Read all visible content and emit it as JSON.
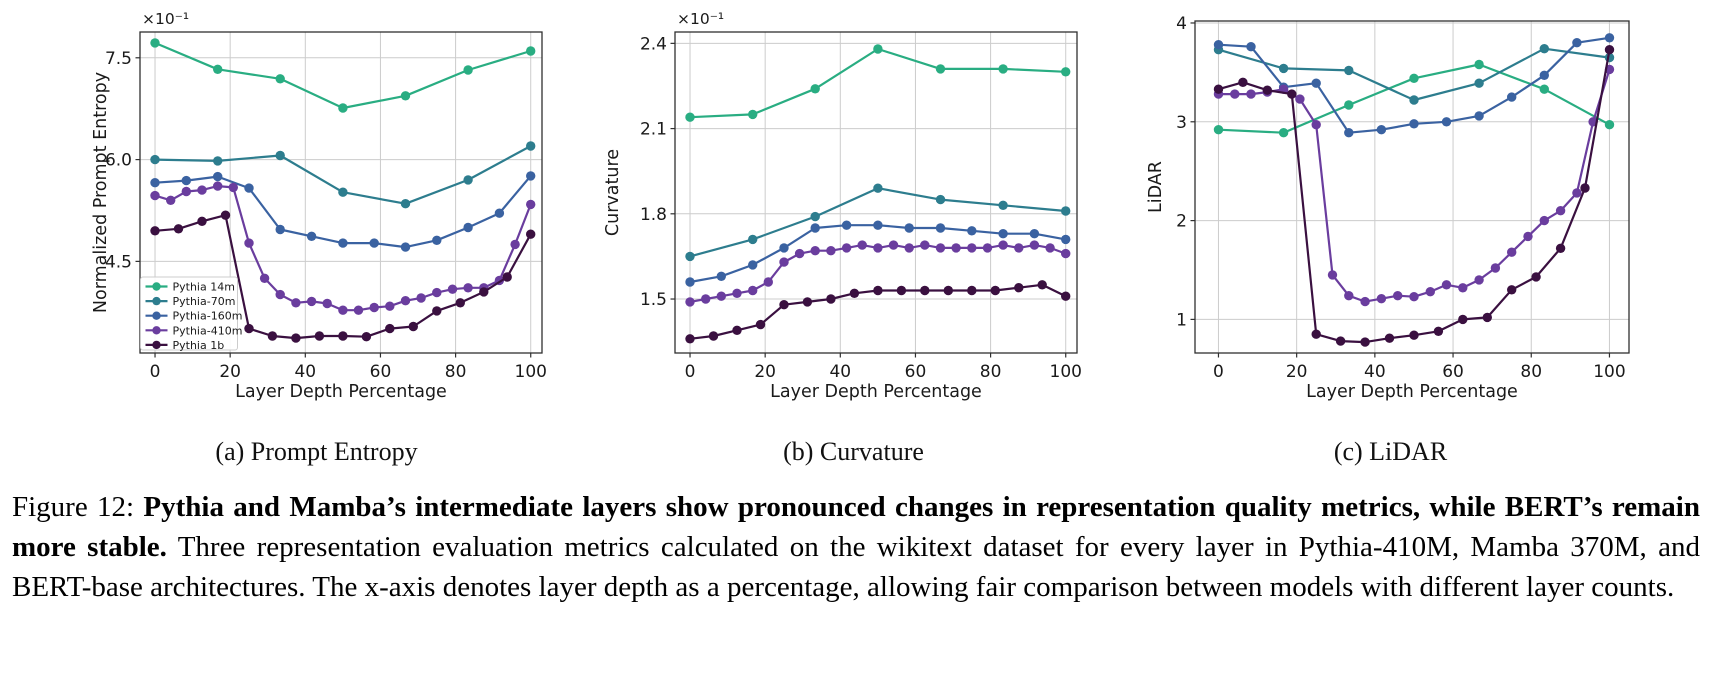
{
  "figure": {
    "subcaptions": [
      "(a) Prompt Entropy",
      "(b) Curvature",
      "(c) LiDAR"
    ],
    "caption": {
      "prefix": "Figure 12: ",
      "bold": "Pythia and Mamba’s intermediate layers show pronounced changes in representation quality metrics, while BERT’s remain more stable.",
      "rest": " Three representation evaluation metrics calculated on the wikitext dataset for every layer in Pythia-410M, Mamba 370M, and BERT-base architectures. The x-axis denotes layer depth as a percentage, allowing fair comparison between models with different layer counts."
    }
  },
  "style": {
    "grid_color": "#cccccc",
    "spine_color": "#2f2f2f",
    "legend_border": "#cccccc"
  },
  "models": [
    {
      "name": "Pythia 14m",
      "color": "#29ad82",
      "x": [
        0,
        16.67,
        33.33,
        50,
        66.67,
        83.33,
        100
      ]
    },
    {
      "name": "Pythia-70m",
      "color": "#2d7d8e",
      "x": [
        0,
        16.67,
        33.33,
        50,
        66.67,
        83.33,
        100
      ]
    },
    {
      "name": "Pythia-160m",
      "color": "#3a62a1",
      "x": [
        0,
        8.33,
        16.67,
        25,
        33.33,
        41.67,
        50,
        58.33,
        66.67,
        75,
        83.33,
        91.67,
        100
      ]
    },
    {
      "name": "Pythia-410m",
      "color": "#6a3d9e",
      "x": [
        0,
        4.17,
        8.33,
        12.5,
        16.67,
        20.83,
        25,
        29.17,
        33.33,
        37.5,
        41.67,
        45.83,
        50,
        54.17,
        58.33,
        62.5,
        66.67,
        70.83,
        75,
        79.17,
        83.33,
        87.5,
        91.67,
        95.83,
        100
      ]
    },
    {
      "name": "Pythia 1b",
      "color": "#3a1040",
      "x": [
        0,
        6.25,
        12.5,
        18.75,
        25,
        31.25,
        37.5,
        43.75,
        50,
        56.25,
        62.5,
        68.75,
        75,
        81.25,
        87.5,
        93.75,
        100
      ]
    }
  ],
  "chart_data": [
    {
      "type": "line",
      "panel": "a",
      "title": "(a) Prompt Entropy",
      "xlabel": "Layer Depth Percentage",
      "ylabel": "Normalized Prompt Entropy",
      "offset_text": "×10⁻¹",
      "grid": true,
      "legend": true,
      "legend_position": "lower left",
      "xlim": [
        -4,
        103
      ],
      "ylim": [
        3.15,
        7.88
      ],
      "xtick_vals": [
        0,
        20,
        40,
        60,
        80,
        100
      ],
      "xtick_labels": [
        "0",
        "20",
        "40",
        "60",
        "80",
        "100"
      ],
      "ytick_vals": [
        4.5,
        6.0,
        7.5
      ],
      "ytick_labels": [
        "4.5",
        "6.0",
        "7.5"
      ],
      "series": [
        {
          "model": "Pythia 14m",
          "y": [
            7.72,
            7.33,
            7.19,
            6.76,
            6.94,
            7.32,
            7.6
          ]
        },
        {
          "model": "Pythia-70m",
          "y": [
            6.0,
            5.98,
            6.06,
            5.52,
            5.35,
            5.7,
            6.2
          ]
        },
        {
          "model": "Pythia-160m",
          "y": [
            5.66,
            5.69,
            5.75,
            5.58,
            4.97,
            4.87,
            4.77,
            4.77,
            4.71,
            4.81,
            5.0,
            5.21,
            5.76
          ]
        },
        {
          "model": "Pythia-410m",
          "y": [
            5.47,
            5.4,
            5.53,
            5.55,
            5.61,
            5.59,
            4.77,
            4.25,
            4.01,
            3.89,
            3.91,
            3.88,
            3.78,
            3.78,
            3.82,
            3.84,
            3.92,
            3.96,
            4.04,
            4.09,
            4.11,
            4.11,
            4.22,
            4.75,
            5.34
          ]
        },
        {
          "model": "Pythia 1b",
          "y": [
            4.95,
            4.98,
            5.09,
            5.18,
            3.51,
            3.4,
            3.37,
            3.4,
            3.4,
            3.39,
            3.51,
            3.54,
            3.77,
            3.89,
            4.05,
            4.27,
            4.9
          ]
        }
      ]
    },
    {
      "type": "line",
      "panel": "b",
      "title": "(b) Curvature",
      "xlabel": "Layer Depth Percentage",
      "ylabel": "Curvature",
      "offset_text": "×10⁻¹",
      "grid": true,
      "legend": false,
      "xlim": [
        -4,
        103
      ],
      "ylim": [
        1.31,
        2.44
      ],
      "xtick_vals": [
        0,
        20,
        40,
        60,
        80,
        100
      ],
      "xtick_labels": [
        "0",
        "20",
        "40",
        "60",
        "80",
        "100"
      ],
      "ytick_vals": [
        1.5,
        1.8,
        2.1,
        2.4
      ],
      "ytick_labels": [
        "1.5",
        "1.8",
        "2.1",
        "2.4"
      ],
      "series": [
        {
          "model": "Pythia 14m",
          "y": [
            2.14,
            2.15,
            2.24,
            2.38,
            2.31,
            2.31,
            2.3
          ]
        },
        {
          "model": "Pythia-70m",
          "y": [
            1.65,
            1.71,
            1.79,
            1.89,
            1.85,
            1.83,
            1.81
          ]
        },
        {
          "model": "Pythia-160m",
          "y": [
            1.56,
            1.58,
            1.62,
            1.68,
            1.75,
            1.76,
            1.76,
            1.75,
            1.75,
            1.74,
            1.73,
            1.73,
            1.71
          ]
        },
        {
          "model": "Pythia-410m",
          "y": [
            1.49,
            1.5,
            1.51,
            1.52,
            1.53,
            1.56,
            1.63,
            1.66,
            1.67,
            1.67,
            1.68,
            1.69,
            1.68,
            1.69,
            1.68,
            1.69,
            1.68,
            1.68,
            1.68,
            1.68,
            1.69,
            1.68,
            1.69,
            1.68,
            1.66
          ]
        },
        {
          "model": "Pythia 1b",
          "y": [
            1.36,
            1.37,
            1.39,
            1.41,
            1.48,
            1.49,
            1.5,
            1.52,
            1.53,
            1.53,
            1.53,
            1.53,
            1.53,
            1.53,
            1.54,
            1.55,
            1.51
          ]
        }
      ]
    },
    {
      "type": "line",
      "panel": "c",
      "title": "(c) LiDAR",
      "xlabel": "Layer Depth Percentage",
      "ylabel": "LiDAR",
      "offset_text": "",
      "grid": true,
      "legend": false,
      "xlim": [
        -6,
        105
      ],
      "ylim": [
        0.66,
        4.02
      ],
      "xtick_vals": [
        0,
        20,
        40,
        60,
        80,
        100
      ],
      "xtick_labels": [
        "0",
        "20",
        "40",
        "60",
        "80",
        "100"
      ],
      "ytick_vals": [
        1,
        2,
        3,
        4
      ],
      "ytick_labels": [
        "1",
        "2",
        "3",
        "4"
      ],
      "series": [
        {
          "model": "Pythia 14m",
          "y": [
            2.92,
            2.89,
            3.17,
            3.44,
            3.58,
            3.33,
            2.97
          ]
        },
        {
          "model": "Pythia-70m",
          "y": [
            3.73,
            3.54,
            3.52,
            3.22,
            3.39,
            3.74,
            3.65
          ]
        },
        {
          "model": "Pythia-160m",
          "y": [
            3.78,
            3.76,
            3.35,
            3.39,
            2.89,
            2.92,
            2.98,
            3.0,
            3.06,
            3.25,
            3.47,
            3.8,
            3.85
          ]
        },
        {
          "model": "Pythia-410m",
          "y": [
            3.28,
            3.28,
            3.28,
            3.3,
            3.33,
            3.23,
            2.97,
            1.45,
            1.24,
            1.18,
            1.21,
            1.24,
            1.23,
            1.28,
            1.35,
            1.32,
            1.4,
            1.52,
            1.68,
            1.84,
            2.0,
            2.1,
            2.28,
            3.0,
            3.53
          ]
        },
        {
          "model": "Pythia 1b",
          "y": [
            3.33,
            3.4,
            3.32,
            3.28,
            0.85,
            0.78,
            0.77,
            0.81,
            0.84,
            0.88,
            1.0,
            1.02,
            1.3,
            1.43,
            1.72,
            2.33,
            3.73
          ]
        }
      ]
    }
  ]
}
